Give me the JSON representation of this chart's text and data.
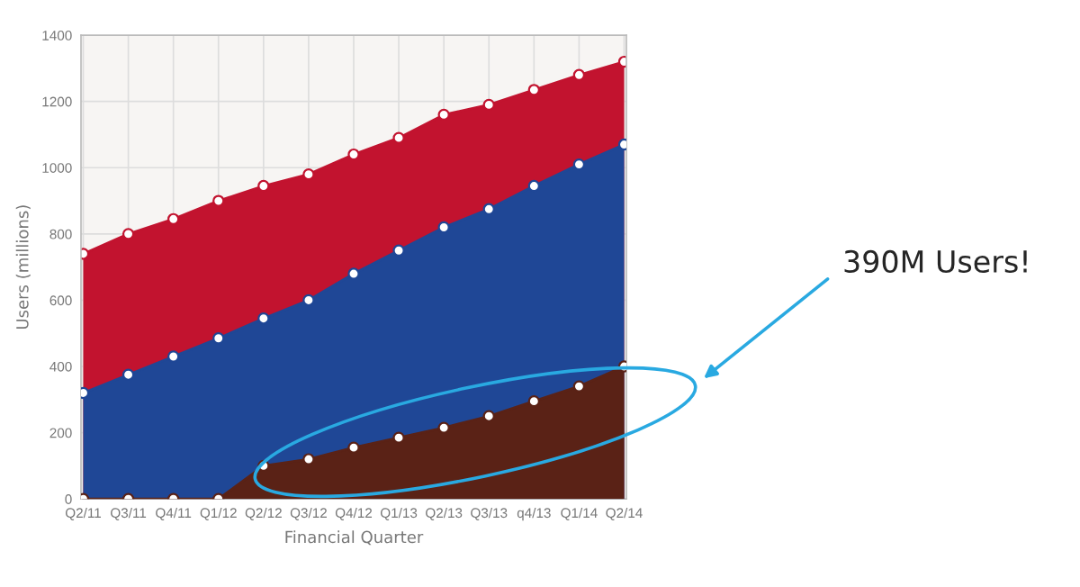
{
  "chart_data": {
    "type": "area",
    "xlabel": "Financial Quarter",
    "ylabel": "Users (millions)",
    "categories": [
      "Q2/11",
      "Q3/11",
      "Q4/11",
      "Q1/12",
      "Q2/12",
      "Q3/12",
      "Q4/12",
      "Q1/13",
      "Q2/13",
      "Q3/13",
      "q4/13",
      "Q1/14",
      "Q2/14"
    ],
    "series": [
      {
        "color": "#c2132f",
        "values": [
          740,
          800,
          845,
          900,
          945,
          980,
          1040,
          1090,
          1160,
          1190,
          1235,
          1280,
          1320
        ]
      },
      {
        "color": "#1f4796",
        "values": [
          320,
          375,
          430,
          485,
          545,
          600,
          680,
          750,
          820,
          875,
          945,
          1010,
          1070
        ]
      },
      {
        "color": "#5a2216",
        "values": [
          0,
          0,
          0,
          0,
          100,
          120,
          155,
          185,
          215,
          250,
          295,
          340,
          400
        ]
      }
    ],
    "ylim": [
      0,
      1400
    ],
    "yticks": [
      0,
      200,
      400,
      600,
      800,
      1000,
      1200,
      1400
    ],
    "grid": true,
    "marker": "circle",
    "annotations": [
      "390M Users!"
    ]
  }
}
